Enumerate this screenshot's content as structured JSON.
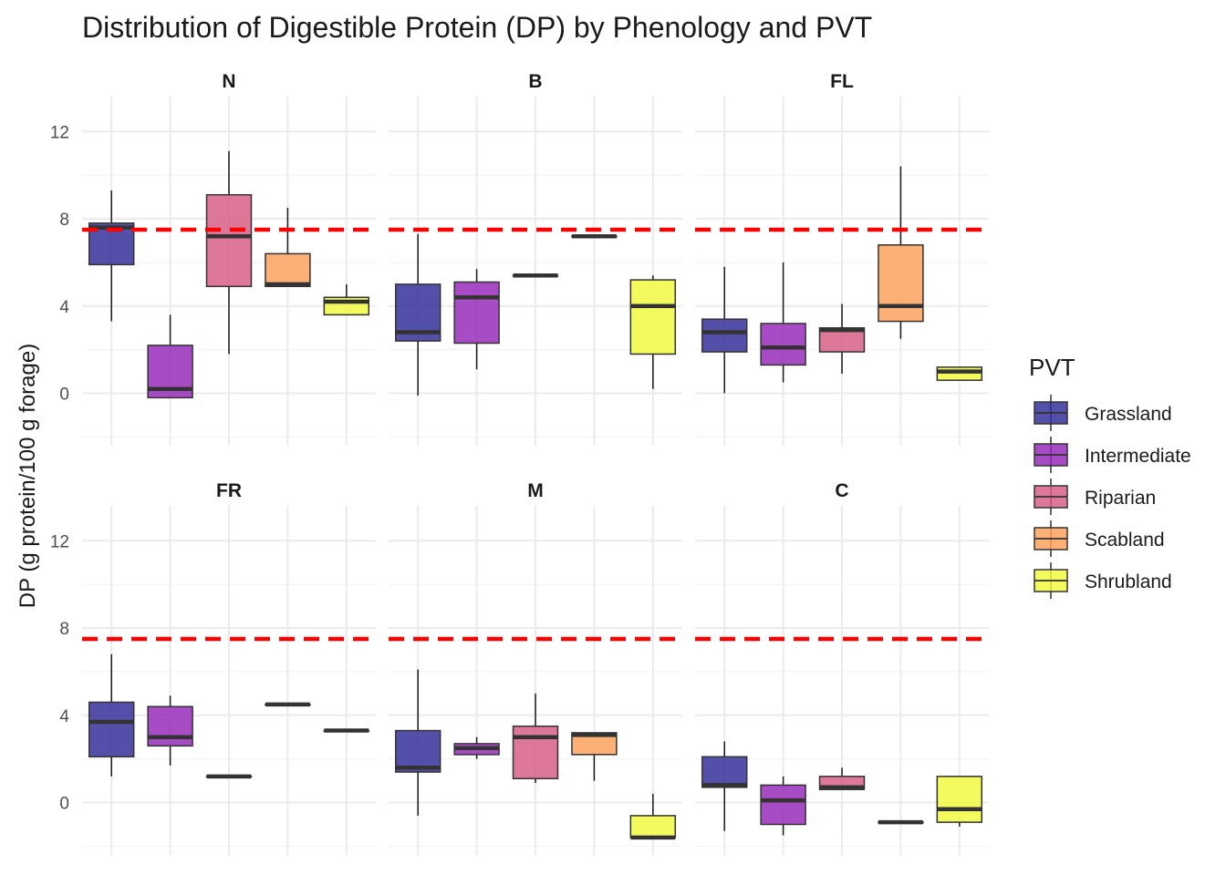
{
  "chart_data": {
    "type": "boxplot",
    "title": "Distribution of Digestible Protein (DP) by Phenology and PVT",
    "ylabel": "DP (g protein/100 g forage)",
    "xlabel": "",
    "ylim": [
      -2.4,
      13.6
    ],
    "y_ticks": [
      0,
      4,
      8,
      12
    ],
    "reference_line": {
      "y": 7.5,
      "color": "#ff0000",
      "style": "dashed"
    },
    "legend": {
      "title": "PVT",
      "position": "right",
      "entries": [
        "Grassland",
        "Intermediate",
        "Riparian",
        "Scabland",
        "Shrubland"
      ]
    },
    "colors": [
      "#2e2a96",
      "#9524b8",
      "#d65a82",
      "#fd9f58",
      "#f0f93a"
    ],
    "panels": [
      {
        "label": "N",
        "boxes": [
          {
            "group": "Grassland",
            "min": 3.3,
            "q1": 5.9,
            "median": 7.6,
            "q3": 7.8,
            "max": 9.3
          },
          {
            "group": "Intermediate",
            "min": -0.2,
            "q1": -0.2,
            "median": 0.2,
            "q3": 2.2,
            "max": 3.6
          },
          {
            "group": "Riparian",
            "min": 1.8,
            "q1": 4.9,
            "median": 7.2,
            "q3": 9.1,
            "max": 11.1
          },
          {
            "group": "Scabland",
            "min": 4.9,
            "q1": 4.9,
            "median": 5.0,
            "q3": 6.4,
            "max": 8.5
          },
          {
            "group": "Shrubland",
            "min": 3.6,
            "q1": 3.6,
            "median": 4.2,
            "q3": 4.4,
            "max": 5.0
          }
        ]
      },
      {
        "label": "B",
        "boxes": [
          {
            "group": "Grassland",
            "min": -0.1,
            "q1": 2.4,
            "median": 2.8,
            "q3": 5.0,
            "max": 7.3
          },
          {
            "group": "Intermediate",
            "min": 1.1,
            "q1": 2.3,
            "median": 4.4,
            "q3": 5.1,
            "max": 5.7
          },
          {
            "group": "Riparian",
            "min": 5.4,
            "q1": 5.4,
            "median": 5.4,
            "q3": 5.4,
            "max": 5.4
          },
          {
            "group": "Scabland",
            "min": 7.2,
            "q1": 7.2,
            "median": 7.2,
            "q3": 7.2,
            "max": 7.2
          },
          {
            "group": "Shrubland",
            "min": 0.2,
            "q1": 1.8,
            "median": 4.0,
            "q3": 5.2,
            "max": 5.4
          }
        ]
      },
      {
        "label": "FL",
        "boxes": [
          {
            "group": "Grassland",
            "min": 0.0,
            "q1": 1.9,
            "median": 2.8,
            "q3": 3.4,
            "max": 5.8
          },
          {
            "group": "Intermediate",
            "min": 0.5,
            "q1": 1.3,
            "median": 2.1,
            "q3": 3.2,
            "max": 6.0
          },
          {
            "group": "Riparian",
            "min": 0.9,
            "q1": 1.9,
            "median": 2.9,
            "q3": 3.0,
            "max": 4.1
          },
          {
            "group": "Scabland",
            "min": 2.5,
            "q1": 3.3,
            "median": 4.0,
            "q3": 6.8,
            "max": 10.4
          },
          {
            "group": "Shrubland",
            "min": 0.6,
            "q1": 0.6,
            "median": 1.0,
            "q3": 1.2,
            "max": 1.2
          }
        ]
      },
      {
        "label": "FR",
        "boxes": [
          {
            "group": "Grassland",
            "min": 1.2,
            "q1": 2.1,
            "median": 3.7,
            "q3": 4.6,
            "max": 6.8
          },
          {
            "group": "Intermediate",
            "min": 1.7,
            "q1": 2.6,
            "median": 3.0,
            "q3": 4.4,
            "max": 4.9
          },
          {
            "group": "Riparian",
            "min": 1.2,
            "q1": 1.2,
            "median": 1.2,
            "q3": 1.2,
            "max": 1.2
          },
          {
            "group": "Scabland",
            "min": 4.5,
            "q1": 4.5,
            "median": 4.5,
            "q3": 4.5,
            "max": 4.5
          },
          {
            "group": "Shrubland",
            "min": 3.3,
            "q1": 3.3,
            "median": 3.3,
            "q3": 3.3,
            "max": 3.3
          }
        ]
      },
      {
        "label": "M",
        "boxes": [
          {
            "group": "Grassland",
            "min": -0.6,
            "q1": 1.4,
            "median": 1.6,
            "q3": 3.3,
            "max": 6.1
          },
          {
            "group": "Intermediate",
            "min": 2.0,
            "q1": 2.2,
            "median": 2.5,
            "q3": 2.7,
            "max": 3.0
          },
          {
            "group": "Riparian",
            "min": 0.9,
            "q1": 1.1,
            "median": 3.0,
            "q3": 3.5,
            "max": 5.0
          },
          {
            "group": "Scabland",
            "min": 1.0,
            "q1": 2.2,
            "median": 3.1,
            "q3": 3.2,
            "max": 3.2
          },
          {
            "group": "Shrubland",
            "min": -1.6,
            "q1": -1.6,
            "median": -1.6,
            "q3": -0.6,
            "max": 0.4
          }
        ]
      },
      {
        "label": "C",
        "boxes": [
          {
            "group": "Grassland",
            "min": -1.3,
            "q1": 0.7,
            "median": 0.8,
            "q3": 2.1,
            "max": 2.8
          },
          {
            "group": "Intermediate",
            "min": -1.5,
            "q1": -1.0,
            "median": 0.1,
            "q3": 0.8,
            "max": 1.2
          },
          {
            "group": "Riparian",
            "min": 0.6,
            "q1": 0.6,
            "median": 0.7,
            "q3": 1.2,
            "max": 1.6
          },
          {
            "group": "Scabland",
            "min": -0.9,
            "q1": -0.9,
            "median": -0.9,
            "q3": -0.9,
            "max": -0.9
          },
          {
            "group": "Shrubland",
            "min": -1.1,
            "q1": -0.9,
            "median": -0.3,
            "q3": 1.2,
            "max": 1.2
          }
        ]
      }
    ]
  }
}
